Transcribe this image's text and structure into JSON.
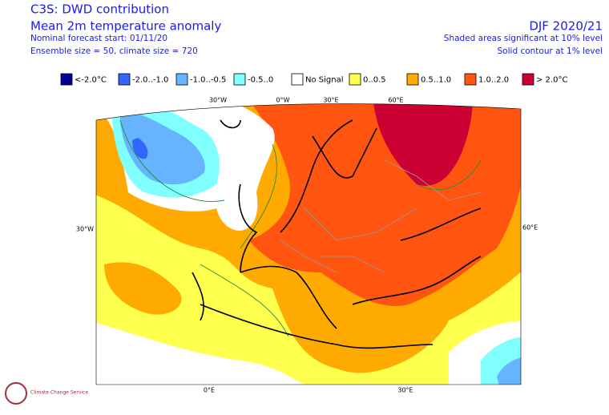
{
  "header": {
    "title": "C3S: DWD contribution",
    "subtitle": "Mean 2m temperature anomaly",
    "forecast_start": "Nominal forecast start: 01/11/20",
    "ensemble": "Ensemble size = 50, climate size = 720",
    "season": "DJF 2020/21",
    "shading_note": "Shaded areas significant at 10% level",
    "contour_note": "Solid contour at 1% level"
  },
  "legend": [
    {
      "label": "<-2.0°C",
      "color": "#000099"
    },
    {
      "label": "-2.0..-1.0",
      "color": "#3366ff"
    },
    {
      "label": "-1.0..-0.5",
      "color": "#66b3ff"
    },
    {
      "label": "-0.5..0",
      "color": "#80ffff"
    },
    {
      "label": "No Signal",
      "color": "#ffffff"
    },
    {
      "label": "0..0.5",
      "color": "#ffff4d"
    },
    {
      "label": "0.5..1.0",
      "color": "#ffaa00"
    },
    {
      "label": "1.0..2.0",
      "color": "#ff5511"
    },
    {
      "label": "> 2.0°C",
      "color": "#cc0033"
    }
  ],
  "map": {
    "top_labels": [
      "30°W",
      "0°W",
      "30°E",
      "60°E"
    ],
    "left_label": "30°W",
    "right_label": "60°E",
    "bottom_labels": [
      "0°E",
      "30°E"
    ]
  },
  "logo": "Climate Change Service"
}
